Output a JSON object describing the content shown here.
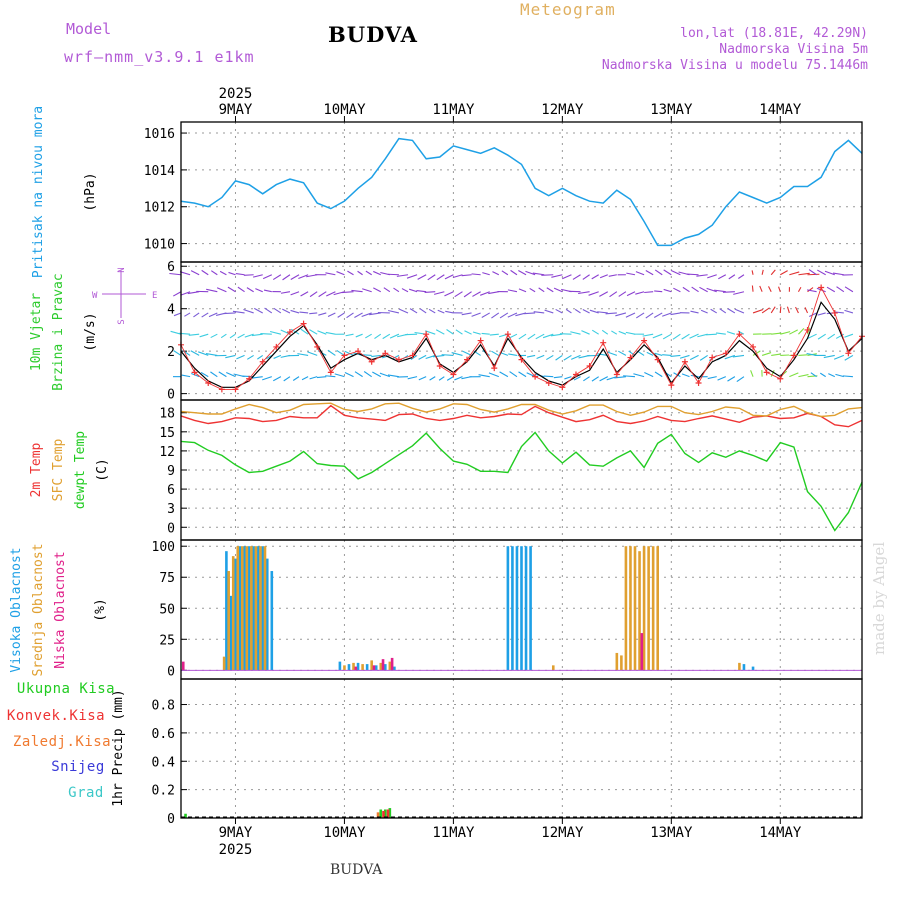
{
  "header": {
    "model_label": "Model",
    "model_run": "wrf–nmm_v3.9.1 e1km",
    "city": "BUDVA",
    "product": "Meteogram",
    "lonlat": "lon,lat (18.81E, 42.29N)",
    "elevation": "Nadmorska Visina 5m",
    "model_elevation": "Nadmorska Visina u modelu 75.1446m"
  },
  "footer": {
    "city": "BUDVA",
    "credit": "made by Angel"
  },
  "colors": {
    "pressure": "#1ea0e6",
    "wind_label": "#2ecc2e",
    "temp2m": "#ee3333",
    "sfc": "#e0a030",
    "dew": "#22cc22",
    "high_cloud": "#1ea0e6",
    "mid_cloud": "#e0a030",
    "low_cloud": "#e0208a",
    "compass": "#b25ad6"
  },
  "chart_data": [
    {
      "type": "line",
      "panel": "pressure",
      "ylabel": [
        "Pritisak na nivou mora",
        "(hPa)"
      ],
      "yticks": [
        1010,
        1012,
        1014,
        1016
      ],
      "ylim": [
        1009,
        1016.6
      ],
      "x_dates": [
        "2025-05-08T12:00",
        "2025-05-14T18:00"
      ],
      "x_top_labels": [
        "9MAY",
        "10MAY",
        "11MAY",
        "12MAY",
        "13MAY",
        "14MAY"
      ],
      "x_top_year": "2025",
      "x": [
        0,
        3,
        6,
        9,
        12,
        15,
        18,
        21,
        24,
        27,
        30,
        33,
        36,
        39,
        42,
        45,
        48,
        51,
        54,
        57,
        60,
        63,
        66,
        69,
        72,
        75,
        78,
        81,
        84,
        87,
        90,
        93,
        96,
        99,
        102,
        105,
        108,
        111,
        114,
        117,
        120,
        123,
        126,
        129,
        132,
        135,
        138,
        141,
        144,
        147,
        150
      ],
      "series": [
        {
          "values": [
            1012.3,
            1012.2,
            1012.0,
            1012.5,
            1013.4,
            1013.2,
            1012.7,
            1013.2,
            1013.5,
            1013.3,
            1012.2,
            1011.9,
            1012.3,
            1013.0,
            1013.6,
            1014.6,
            1015.7,
            1015.6,
            1014.6,
            1014.7,
            1015.3,
            1015.1,
            1014.9,
            1015.2,
            1014.8,
            1014.3,
            1013.0,
            1012.6,
            1013.0,
            1012.6,
            1012.3,
            1012.2,
            1012.9,
            1012.4,
            1011.2,
            1009.9,
            1009.9,
            1010.3,
            1010.5,
            1011.0,
            1012.0,
            1012.8,
            1012.5,
            1012.2,
            1012.5,
            1013.1,
            1013.1,
            1013.6,
            1015.0,
            1015.6,
            1014.9
          ]
        }
      ]
    },
    {
      "type": "line",
      "panel": "wind",
      "ylabel": [
        "10m Vjetar",
        "Brzina i Pravac",
        "(m/s)"
      ],
      "compass": {
        "w": "W",
        "e": "E",
        "n": "N",
        "s": "S"
      },
      "yticks": [
        0,
        2,
        4,
        6
      ],
      "ylim": [
        -0.3,
        6.2
      ],
      "arrow_rows": [
        0.8,
        1.8,
        2.8,
        3.8,
        4.8,
        5.6
      ],
      "x": [
        0,
        3,
        6,
        9,
        12,
        15,
        18,
        21,
        24,
        27,
        30,
        33,
        36,
        39,
        42,
        45,
        48,
        51,
        54,
        57,
        60,
        63,
        66,
        69,
        72,
        75,
        78,
        81,
        84,
        87,
        90,
        93,
        96,
        99,
        102,
        105,
        108,
        111,
        114,
        117,
        120,
        123,
        126,
        129,
        132,
        135,
        138,
        141,
        144,
        147,
        150
      ],
      "series": [
        {
          "values": [
            2.0,
            1.2,
            0.6,
            0.3,
            0.3,
            0.6,
            1.3,
            2.0,
            2.7,
            3.2,
            2.3,
            1.2,
            1.6,
            1.9,
            1.6,
            1.8,
            1.5,
            1.7,
            2.6,
            1.4,
            1.0,
            1.5,
            2.3,
            1.3,
            2.6,
            1.7,
            1.0,
            0.6,
            0.4,
            0.8,
            1.1,
            2.1,
            1.0,
            1.6,
            2.3,
            1.7,
            0.5,
            1.3,
            0.7,
            1.5,
            1.8,
            2.5,
            2.0,
            1.2,
            0.8,
            1.6,
            2.6,
            4.3,
            3.5,
            2.0,
            2.6
          ]
        },
        {
          "values": [
            2.3,
            1.0,
            0.5,
            0.2,
            0.2,
            0.7,
            1.5,
            2.2,
            2.9,
            3.3,
            2.2,
            1.0,
            1.8,
            2.0,
            1.5,
            1.9,
            1.6,
            1.8,
            2.8,
            1.3,
            0.9,
            1.6,
            2.5,
            1.2,
            2.8,
            1.6,
            0.8,
            0.5,
            0.3,
            0.9,
            1.3,
            2.4,
            0.9,
            1.7,
            2.5,
            1.6,
            0.4,
            1.5,
            0.5,
            1.7,
            1.9,
            2.8,
            2.2,
            1.0,
            0.7,
            1.8,
            3.0,
            5.0,
            3.8,
            1.9,
            2.7
          ]
        }
      ]
    },
    {
      "type": "line",
      "panel": "temperature",
      "ylabel": [
        "2m Temp",
        "SFC Temp",
        "dewpt Temp",
        "(C)"
      ],
      "yticks": [
        0,
        3,
        6,
        9,
        12,
        15,
        18
      ],
      "ylim": [
        -2,
        20
      ],
      "x": [
        0,
        3,
        6,
        9,
        12,
        15,
        18,
        21,
        24,
        27,
        30,
        33,
        36,
        39,
        42,
        45,
        48,
        51,
        54,
        57,
        60,
        63,
        66,
        69,
        72,
        75,
        78,
        81,
        84,
        87,
        90,
        93,
        96,
        99,
        102,
        105,
        108,
        111,
        114,
        117,
        120,
        123,
        126,
        129,
        132,
        135,
        138,
        141,
        144,
        147,
        150
      ],
      "series": [
        {
          "values": [
            17.5,
            16.8,
            16.3,
            16.6,
            17.2,
            17.1,
            16.6,
            16.8,
            17.4,
            17.2,
            17.2,
            19.1,
            17.6,
            17.2,
            17.0,
            16.8,
            17.7,
            17.8,
            17.1,
            16.8,
            17.1,
            17.6,
            17.2,
            17.4,
            17.8,
            17.7,
            19.0,
            18.0,
            17.3,
            16.6,
            16.9,
            17.6,
            16.6,
            16.3,
            16.7,
            17.4,
            16.8,
            16.6,
            17.1,
            17.5,
            17.0,
            16.5,
            17.3,
            17.5,
            17.1,
            17.2,
            17.9,
            17.4,
            16.1,
            15.8,
            16.8
          ]
        },
        {
          "values": [
            18.2,
            18.0,
            17.8,
            17.8,
            18.6,
            19.3,
            18.8,
            18.0,
            18.4,
            19.3,
            19.4,
            19.5,
            18.5,
            18.2,
            18.6,
            19.4,
            19.5,
            18.7,
            18.1,
            18.6,
            19.4,
            19.3,
            18.5,
            18.1,
            18.6,
            19.3,
            19.3,
            18.4,
            17.8,
            18.3,
            19.2,
            19.2,
            18.2,
            17.6,
            18.1,
            19.0,
            19.0,
            18.0,
            17.7,
            18.2,
            18.9,
            18.7,
            17.6,
            17.5,
            18.5,
            19.0,
            18.0,
            17.4,
            17.6,
            18.6,
            18.8
          ]
        },
        {
          "values": [
            13.5,
            13.3,
            12.1,
            11.3,
            9.8,
            8.6,
            8.8,
            9.6,
            10.4,
            11.9,
            10.0,
            9.7,
            9.6,
            7.6,
            8.6,
            10.0,
            11.4,
            12.8,
            14.8,
            12.4,
            10.4,
            9.9,
            8.8,
            8.8,
            8.6,
            12.7,
            14.9,
            12.0,
            10.1,
            11.8,
            9.8,
            9.6,
            10.9,
            12.0,
            9.4,
            13.2,
            14.6,
            11.6,
            10.2,
            11.7,
            11.0,
            12.0,
            11.3,
            10.4,
            13.3,
            12.6,
            5.6,
            3.3,
            -0.5,
            2.3,
            7.1
          ]
        }
      ]
    },
    {
      "type": "bar",
      "panel": "cloud",
      "ylabel": [
        "Visoka Oblacnost",
        "Srednja Oblacnost",
        "Niska Oblacnost",
        "(%)"
      ],
      "yticks": [
        0,
        25,
        50,
        75,
        100
      ],
      "ylim": [
        -7,
        105
      ],
      "series": [
        {
          "name": "Visoka Oblacnost",
          "x": [
            10.0,
            11.0,
            12.0,
            13.0,
            14.0,
            15.0,
            16.0,
            17.0,
            18.0,
            19.0,
            20.0,
            35.0,
            37.0,
            39.0,
            41.0,
            43.0,
            45.0,
            47.0,
            72.0,
            73.0,
            74.0,
            75.0,
            76.0,
            77.0,
            124.0,
            126.0
          ],
          "values": [
            96,
            60,
            90,
            100,
            100,
            100,
            100,
            100,
            100,
            90,
            80,
            7,
            5,
            6,
            5,
            4,
            5,
            3,
            100,
            100,
            100,
            100,
            100,
            100,
            5,
            3
          ]
        },
        {
          "name": "Srednja Oblacnost",
          "x": [
            9.5,
            10.5,
            11.5,
            12.5,
            13.5,
            14.5,
            15.5,
            16.5,
            17.5,
            18.5,
            36.0,
            38.0,
            40.0,
            42.0,
            44.0,
            46.0,
            82.0,
            96.0,
            97.0,
            98.0,
            99.0,
            100.0,
            101.0,
            102.0,
            103.0,
            104.0,
            105.0,
            123.0
          ],
          "values": [
            11,
            80,
            92,
            100,
            100,
            100,
            100,
            100,
            100,
            100,
            4,
            6,
            5,
            8,
            6,
            7,
            4,
            14,
            12,
            100,
            100,
            100,
            96,
            100,
            100,
            100,
            100,
            6
          ]
        },
        {
          "name": "Niska Oblacnost",
          "x": [
            0.5,
            38.5,
            42.5,
            44.5,
            46.5,
            101.5
          ],
          "values": [
            7,
            3,
            4,
            9,
            10,
            30
          ]
        }
      ]
    },
    {
      "type": "bar",
      "panel": "precip",
      "ylabel": [
        "1hr Precip (mm)"
      ],
      "legend": [
        "Ukupna Kisa",
        "Konvek.Kisa",
        "Zaledj.Kisa",
        "Snijeg",
        "Grad"
      ],
      "yticks": [
        0,
        0.2,
        0.4,
        0.6,
        0.8
      ],
      "ylim": [
        0,
        0.98
      ],
      "x_bottom_labels": [
        "9MAY",
        "10MAY",
        "11MAY",
        "12MAY",
        "13MAY",
        "14MAY"
      ],
      "x_bottom_year": "2025",
      "series": [
        {
          "name": "Ukupna Kisa",
          "x": [
            1,
            44,
            45,
            46
          ],
          "values": [
            0.03,
            0.06,
            0.06,
            0.07
          ]
        },
        {
          "name": "Konvek.Kisa",
          "x": [
            44.6,
            45.6
          ],
          "values": [
            0.05,
            0.06
          ]
        },
        {
          "name": "Zaledj.Kisa",
          "x": [
            43.4
          ],
          "values": [
            0.04
          ]
        },
        {
          "name": "Snijeg",
          "x": [],
          "values": []
        },
        {
          "name": "Grad",
          "x": [],
          "values": []
        }
      ]
    }
  ]
}
